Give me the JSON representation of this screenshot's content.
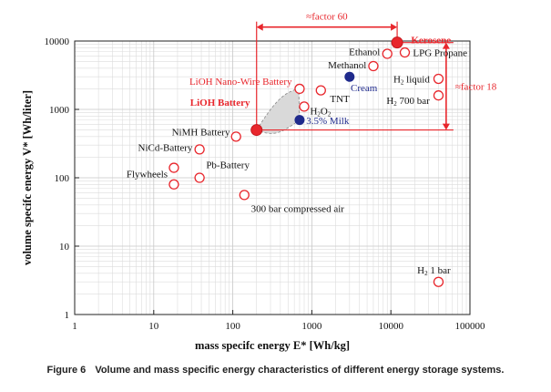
{
  "chart_data": {
    "type": "scatter",
    "xlabel": "mass specifc energy E* [Wh/kg]",
    "ylabel": "volume specifc energy V* [Wh/liter]",
    "xscale": "log",
    "yscale": "log",
    "xlim": [
      1,
      100000
    ],
    "ylim": [
      1,
      10000
    ],
    "grid": true,
    "xticks": [
      "1",
      "10",
      "100",
      "1000",
      "10000",
      "100000"
    ],
    "yticks": [
      "1",
      "10",
      "100",
      "1000",
      "10000"
    ],
    "points": [
      {
        "x": 12000,
        "y": 9500,
        "style": "red-filled"
      },
      {
        "x": 200,
        "y": 500,
        "style": "red-filled"
      },
      {
        "x": 3000,
        "y": 3000,
        "style": "blue-filled"
      },
      {
        "x": 700,
        "y": 700,
        "style": "blue-filled"
      },
      {
        "x": 9000,
        "y": 6500,
        "style": "open"
      },
      {
        "x": 15000,
        "y": 6800,
        "style": "open"
      },
      {
        "x": 6000,
        "y": 4300,
        "style": "open"
      },
      {
        "x": 700,
        "y": 2000,
        "style": "open"
      },
      {
        "x": 1300,
        "y": 1900,
        "style": "open"
      },
      {
        "x": 800,
        "y": 1100,
        "style": "open"
      },
      {
        "x": 40000,
        "y": 2800,
        "style": "open"
      },
      {
        "x": 40000,
        "y": 1600,
        "style": "open"
      },
      {
        "x": 110,
        "y": 400,
        "style": "open"
      },
      {
        "x": 38,
        "y": 260,
        "style": "open"
      },
      {
        "x": 18,
        "y": 140,
        "style": "open"
      },
      {
        "x": 18,
        "y": 80,
        "style": "open"
      },
      {
        "x": 38,
        "y": 100,
        "style": "open"
      },
      {
        "x": 140,
        "y": 56,
        "style": "open"
      },
      {
        "x": 40000,
        "y": 3,
        "style": "open"
      }
    ],
    "labels": [
      {
        "text": "Kerosene",
        "x": 18000,
        "y": 10500,
        "anchor": "start",
        "style": "red-bold"
      },
      {
        "text": "Ethanol",
        "x": 7300,
        "y": 7000,
        "anchor": "end",
        "style": "black"
      },
      {
        "text": "LPG Propane",
        "x": 19000,
        "y": 6800,
        "anchor": "start",
        "style": "black"
      },
      {
        "text": "Methanol",
        "x": 4900,
        "y": 4500,
        "anchor": "end",
        "style": "black"
      },
      {
        "text": "LiOH Nano-Wire Battery",
        "x": 560,
        "y": 2600,
        "anchor": "end",
        "style": "red"
      },
      {
        "text": "Cream",
        "x": 3100,
        "y": 2100,
        "anchor": "start",
        "style": "blue"
      },
      {
        "text": "TNT",
        "x": 1700,
        "y": 1450,
        "anchor": "start",
        "style": "black"
      },
      {
        "text": "LiOH Battery",
        "x": 165,
        "y": 1270,
        "anchor": "end",
        "style": "red-bold"
      },
      {
        "text": "H2O2",
        "x": 950,
        "y": 950,
        "anchor": "start",
        "style": "black"
      },
      {
        "text": "3.5% Milk",
        "x": 850,
        "y": 690,
        "anchor": "start",
        "style": "blue"
      },
      {
        "text": "H2 liquid",
        "x": 31000,
        "y": 2800,
        "anchor": "end",
        "style": "black"
      },
      {
        "text": "H2 700 bar",
        "x": 31000,
        "y": 1350,
        "anchor": "end",
        "style": "black"
      },
      {
        "text": "NiMH Battery",
        "x": 92,
        "y": 470,
        "anchor": "end",
        "style": "black"
      },
      {
        "text": "NiCd-Battery",
        "x": 31,
        "y": 280,
        "anchor": "end",
        "style": "black"
      },
      {
        "text": "Pb-Battery",
        "x": 46,
        "y": 155,
        "anchor": "start",
        "style": "black"
      },
      {
        "text": "Flywheels",
        "x": 15,
        "y": 115,
        "anchor": "end",
        "style": "black"
      },
      {
        "text": "300 bar compressed air",
        "x": 170,
        "y": 36,
        "anchor": "start",
        "style": "black"
      },
      {
        "text": "H2 1 bar",
        "x": 35000,
        "y": 4.5,
        "anchor": "middle",
        "style": "black"
      }
    ],
    "annotations": [
      {
        "text": "≈factor 60",
        "from_x": 200,
        "to_x": 12000,
        "at_y": 16000
      },
      {
        "text": "≈factor 18",
        "at_x": 50000,
        "from_y": 500,
        "to_y": 9500
      }
    ]
  },
  "caption": {
    "number": "Figure 6",
    "text": "Volume and mass specific energy characteristics of different energy storage systems."
  },
  "colors": {
    "accent": "#e8262c",
    "blue": "#1f2a8c",
    "grid": "#dcdcdc",
    "shade": "#d9d9d9"
  }
}
